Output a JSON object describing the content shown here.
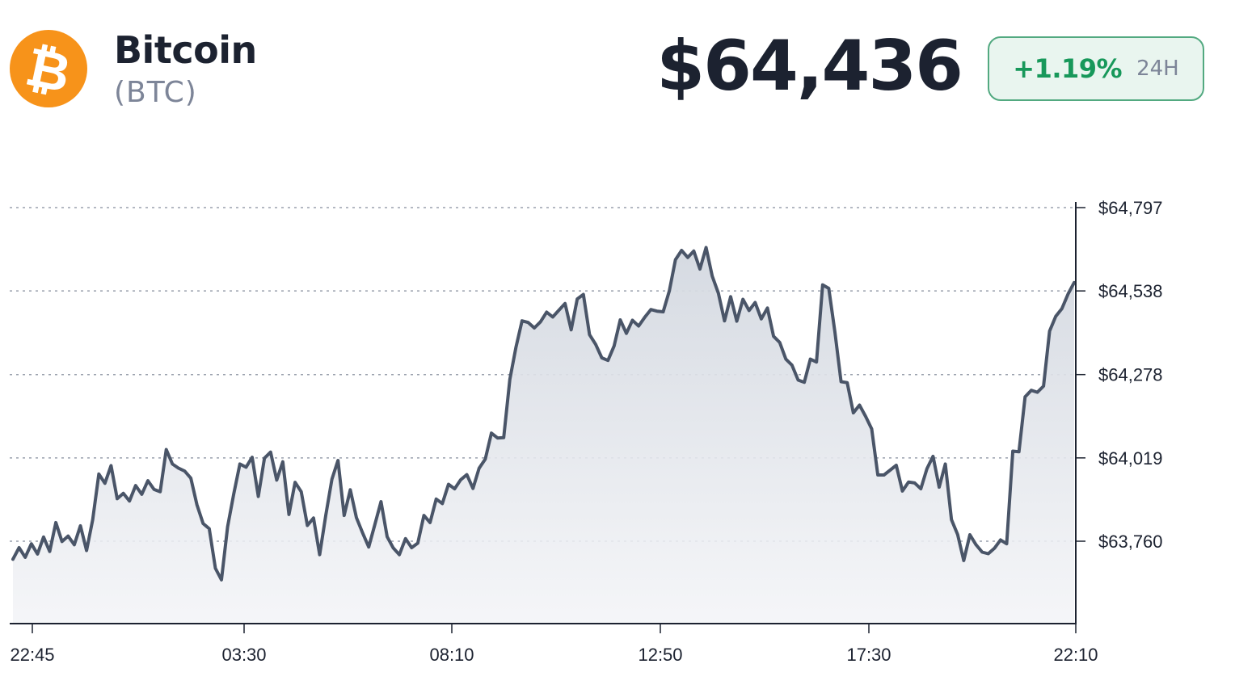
{
  "coin": {
    "name": "Bitcoin",
    "symbol": "(BTC)",
    "logo_icon": "bitcoin-icon",
    "logo_glyph": "₿",
    "logo_color": "#f7931a"
  },
  "price": "$64,436",
  "change": {
    "value": "+1.19%",
    "period": "24H",
    "color": "#17985a"
  },
  "chart_data": {
    "type": "area",
    "title": "",
    "xlabel": "",
    "ylabel": "",
    "x_ticks": [
      "22:45",
      "03:30",
      "08:10",
      "12:50",
      "17:30",
      "22:10"
    ],
    "y_ticks": [
      "$64,797",
      "$64,538",
      "$64,278",
      "$64,019",
      "$63,760"
    ],
    "y_tick_values": [
      64797,
      64538,
      64278,
      64019,
      63760
    ],
    "ylim": [
      63660,
      64900
    ],
    "y_axis_position": "right",
    "grid": "horizontal-dotted",
    "line_color": "#4a5568",
    "x_range": [
      "22:10",
      "22:10"
    ],
    "series": [
      {
        "values": [
          63704,
          63740,
          63710,
          63752,
          63720,
          63773,
          63728,
          63818,
          63759,
          63776,
          63749,
          63808,
          63731,
          63827,
          63969,
          63940,
          63995,
          63892,
          63909,
          63885,
          63933,
          63906,
          63948,
          63921,
          63914,
          64045,
          64000,
          63987,
          63978,
          63956,
          63873,
          63815,
          63799,
          63676,
          63640,
          63805,
          63907,
          64000,
          63990,
          64021,
          63899,
          64018,
          64037,
          63950,
          64007,
          63843,
          63943,
          63914,
          63809,
          63832,
          63718,
          63841,
          63953,
          64011,
          63840,
          63920,
          63833,
          63786,
          63742,
          63812,
          63883,
          63774,
          63739,
          63718,
          63768,
          63740,
          63754,
          63840,
          63818,
          63891,
          63877,
          63937,
          63923,
          63951,
          63967,
          63924,
          63987,
          64015,
          64096,
          64081,
          64082,
          64263,
          64362,
          64445,
          64440,
          64423,
          64442,
          64472,
          64457,
          64478,
          64499,
          64417,
          64513,
          64527,
          64402,
          64372,
          64330,
          64322,
          64367,
          64448,
          64406,
          64447,
          64429,
          64456,
          64480,
          64475,
          64473,
          64538,
          64635,
          64664,
          64642,
          64662,
          64606,
          64673,
          64584,
          64531,
          64445,
          64520,
          64444,
          64512,
          64477,
          64502,
          64451,
          64485,
          64397,
          64378,
          64326,
          64307,
          64261,
          64254,
          64326,
          64317,
          64557,
          64546,
          64410,
          64256,
          64253,
          64159,
          64183,
          64148,
          64109,
          63966,
          63966,
          63981,
          63996,
          63916,
          63944,
          63941,
          63923,
          63985,
          64024,
          63928,
          64000,
          63827,
          63781,
          63700,
          63780,
          63749,
          63726,
          63721,
          63738,
          63764,
          63752,
          64040,
          64038,
          64209,
          64229,
          64223,
          64242,
          64413,
          64459,
          64483,
          64528,
          64564
        ]
      }
    ]
  }
}
